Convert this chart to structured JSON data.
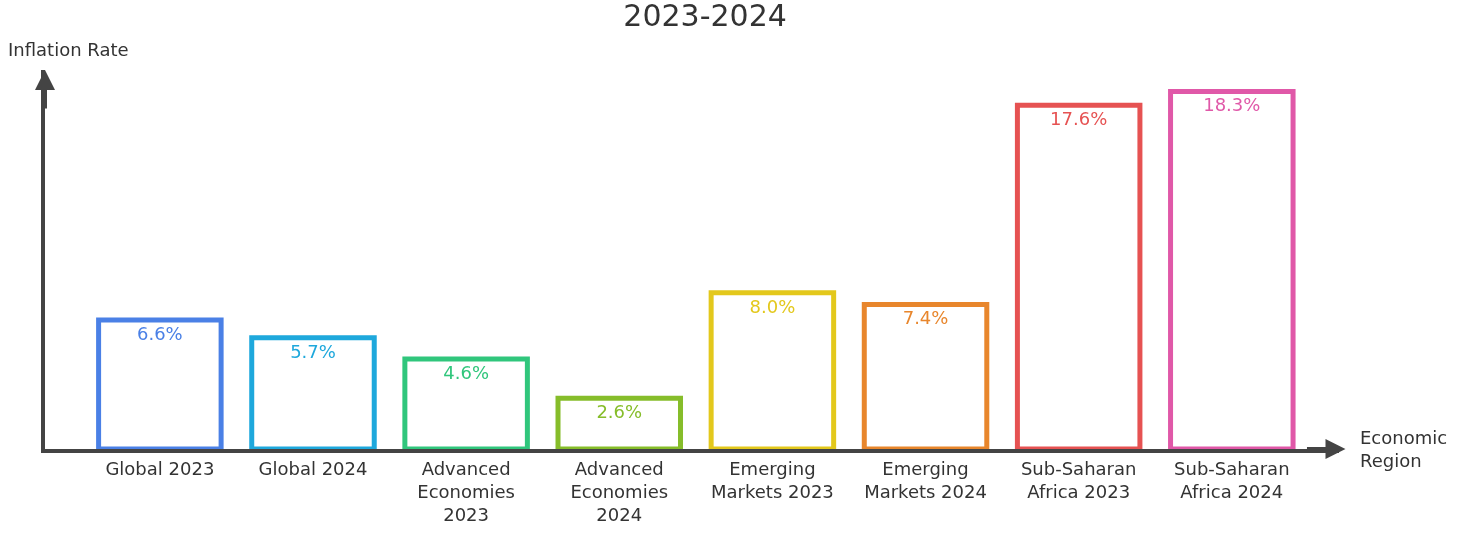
{
  "chart_data": {
    "type": "bar",
    "title": "2023-2024",
    "xlabel": "Economic Region",
    "ylabel": "Inflation Rate",
    "categories": [
      "Global 2023",
      "Global 2024",
      "Advanced Economies 2023",
      "Advanced Economies 2024",
      "Emerging Markets 2023",
      "Emerging Markets 2024",
      "Sub-Saharan Africa 2023",
      "Sub-Saharan Africa 2024"
    ],
    "values": [
      6.6,
      5.7,
      4.6,
      2.6,
      8.0,
      7.4,
      17.6,
      18.3
    ],
    "value_labels": [
      "6.6%",
      "5.7%",
      "4.6%",
      "2.6%",
      "8.0%",
      "7.4%",
      "17.6%",
      "18.3%"
    ],
    "colors": [
      "#4a80e6",
      "#1ea8dc",
      "#30c67c",
      "#86bd2a",
      "#e3c81c",
      "#e8862c",
      "#e65252",
      "#e058a8"
    ],
    "grid": false
  }
}
